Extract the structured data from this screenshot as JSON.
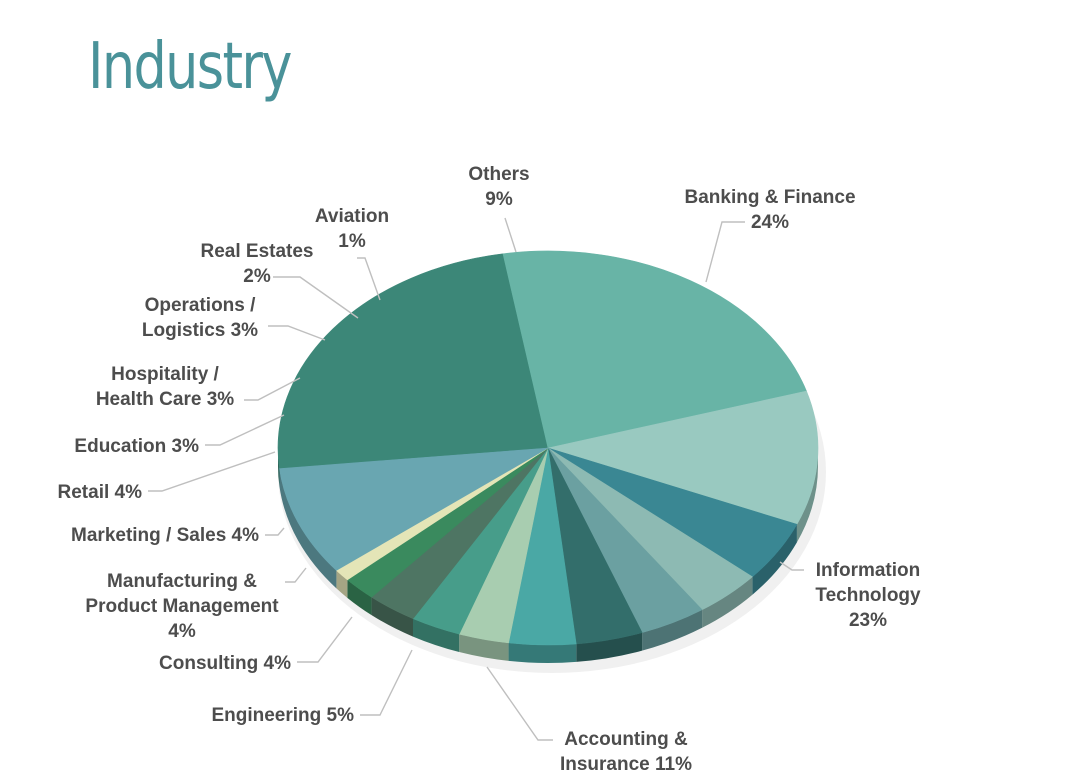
{
  "title": "Industry",
  "chart_data": {
    "type": "pie",
    "title": "Industry",
    "slices": [
      {
        "name": "Banking & Finance",
        "value": 24,
        "label": [
          "Banking & Finance",
          "24%"
        ],
        "color": "#3c8778"
      },
      {
        "name": "Information Technology",
        "value": 23,
        "label": [
          "Information",
          "Technology",
          "23%"
        ],
        "color": "#68b4a6"
      },
      {
        "name": "Accounting & Insurance",
        "value": 11,
        "label": [
          "Accounting &",
          "Insurance 11%"
        ],
        "color": "#99c9c0"
      },
      {
        "name": "Engineering",
        "value": 5,
        "label": [
          "Engineering 5%"
        ],
        "color": "#3a8793"
      },
      {
        "name": "Consulting",
        "value": 4,
        "label": [
          "Consulting 4%"
        ],
        "color": "#8dbab3"
      },
      {
        "name": "Manufacturing & Product Management",
        "value": 4,
        "label": [
          "Manufacturing &",
          "Product Management",
          "4%"
        ],
        "color": "#6ba0a1"
      },
      {
        "name": "Marketing / Sales",
        "value": 4,
        "label": [
          "Marketing / Sales 4%"
        ],
        "color": "#336e6b"
      },
      {
        "name": "Retail",
        "value": 4,
        "label": [
          "Retail 4%"
        ],
        "color": "#4aa8a5"
      },
      {
        "name": "Education",
        "value": 3,
        "label": [
          "Education 3%"
        ],
        "color": "#a8cdb0"
      },
      {
        "name": "Hospitality / Health Care",
        "value": 3,
        "label": [
          "Hospitality /",
          "Health Care 3%"
        ],
        "color": "#479d8a"
      },
      {
        "name": "Operations / Logistics",
        "value": 3,
        "label": [
          "Operations /",
          "Logistics 3%"
        ],
        "color": "#4e7563"
      },
      {
        "name": "Real Estates",
        "value": 2,
        "label": [
          "Real Estates",
          "2%"
        ],
        "color": "#3a8a5e"
      },
      {
        "name": "Aviation",
        "value": 1,
        "label": [
          "Aviation",
          "1%"
        ],
        "color": "#e4e5b7"
      },
      {
        "name": "Others",
        "value": 9,
        "label": [
          "Others",
          "9%"
        ],
        "color": "#69a6b1"
      }
    ]
  }
}
